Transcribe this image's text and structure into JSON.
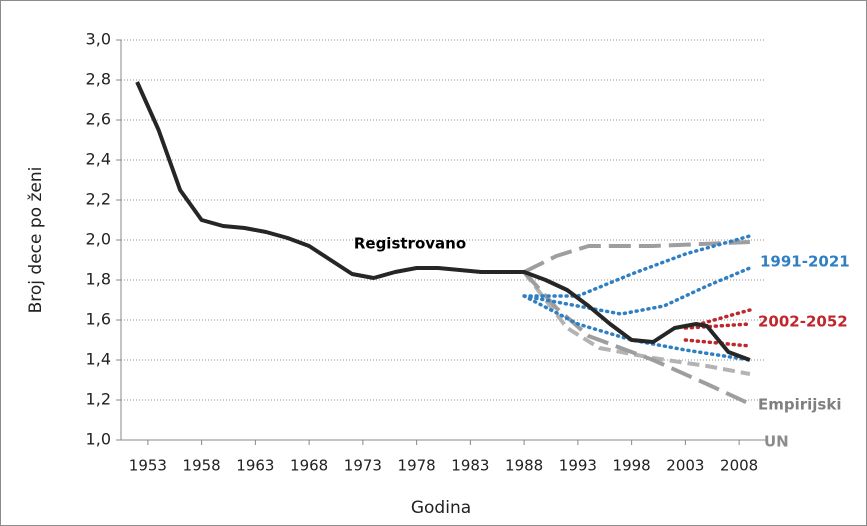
{
  "chart_data": {
    "type": "line",
    "x_label": "Godina",
    "y_label": "Broj dece po ženi",
    "xlim": [
      1950.5,
      2010.5
    ],
    "xticks": [
      1953,
      1958,
      1963,
      1968,
      1973,
      1978,
      1983,
      1988,
      1993,
      1998,
      2003,
      2008
    ],
    "ylim": [
      1.0,
      3.0
    ],
    "yticks": [
      {
        "value": 1.0,
        "label": "1,0"
      },
      {
        "value": 1.2,
        "label": "1,2"
      },
      {
        "value": 1.4,
        "label": "1,4"
      },
      {
        "value": 1.6,
        "label": "1,6"
      },
      {
        "value": 1.8,
        "label": "1,8"
      },
      {
        "value": 2.0,
        "label": "2,0"
      },
      {
        "value": 2.2,
        "label": "2,2"
      },
      {
        "value": 2.4,
        "label": "2,4"
      },
      {
        "value": 2.6,
        "label": "2,6"
      },
      {
        "value": 2.8,
        "label": "2,8"
      },
      {
        "value": 3.0,
        "label": "3,0"
      }
    ],
    "grid": true,
    "series": [
      {
        "name": "Registrovano",
        "color": "#262626",
        "label_color": "#000000",
        "style": "solid",
        "x": [
          1952,
          1954,
          1956,
          1958,
          1960,
          1962,
          1964,
          1966,
          1968,
          1970,
          1972,
          1974,
          1976,
          1978,
          1980,
          1982,
          1984,
          1986,
          1988,
          1990,
          1992,
          1994,
          1996,
          1998,
          2000,
          2002,
          2004,
          2005,
          2007,
          2009
        ],
        "values": [
          2.79,
          2.55,
          2.25,
          2.1,
          2.07,
          2.06,
          2.04,
          2.01,
          1.97,
          1.9,
          1.83,
          1.81,
          1.84,
          1.86,
          1.86,
          1.85,
          1.84,
          1.84,
          1.84,
          1.8,
          1.75,
          1.67,
          1.58,
          1.5,
          1.49,
          1.56,
          1.58,
          1.57,
          1.44,
          1.4
        ]
      },
      {
        "name": "Empirijski",
        "color": "#b3b3b3",
        "label_color": "#7f7f7f",
        "style": "dashed",
        "x": [
          1988,
          1990,
          1992,
          1995,
          2000,
          2005,
          2009
        ],
        "values": [
          1.84,
          1.7,
          1.56,
          1.46,
          1.41,
          1.37,
          1.33
        ]
      },
      {
        "name": "UN",
        "color": "#9e9e9e",
        "label_color": "#8c8c8c",
        "style": "longdash",
        "x": [
          1988,
          1991,
          1994,
          2000,
          2009,
          null,
          1988,
          1991,
          1994,
          2000,
          2005,
          2009
        ],
        "values": [
          1.84,
          1.92,
          1.97,
          1.97,
          1.99,
          null,
          1.84,
          1.66,
          1.52,
          1.4,
          1.28,
          1.18
        ]
      },
      {
        "name": "1991-2021",
        "color": "#2e7fc4",
        "label_color": "#2e7fc4",
        "style": "dotted",
        "x": [
          1988,
          1993,
          1998,
          2003,
          2009,
          null,
          1988,
          1993,
          1997,
          2001,
          2005,
          2009,
          null,
          1988,
          1993,
          1998,
          2003,
          2009
        ],
        "values": [
          1.72,
          1.72,
          1.83,
          1.93,
          2.02,
          null,
          1.72,
          1.67,
          1.63,
          1.67,
          1.77,
          1.86,
          null,
          1.72,
          1.58,
          1.5,
          1.45,
          1.4
        ]
      },
      {
        "name": "2002-2052",
        "color": "#c0272d",
        "label_color": "#c0272d",
        "style": "dotted",
        "x": [
          2003,
          2009,
          null,
          2003,
          2009,
          null,
          2003,
          2009
        ],
        "values": [
          1.56,
          1.65,
          null,
          1.56,
          1.58,
          null,
          1.5,
          1.47
        ]
      }
    ]
  }
}
